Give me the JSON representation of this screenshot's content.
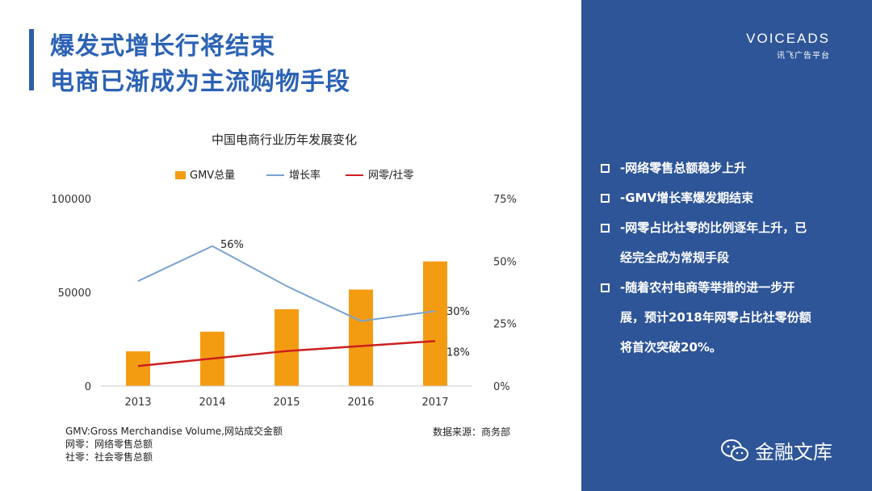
{
  "header": {
    "title_line1": "爆发式增长行将结束",
    "title_line2": "电商已渐成为主流购物手段"
  },
  "brand": {
    "logo": "VOICEADS",
    "logo_sub": "讯飞广告平台"
  },
  "bullets": [
    "-网络零售总额稳步上升",
    "-GMV增长率爆发期结束",
    "-网零占比社零的比例逐年上升，已",
    "经完全成为常规手段",
    "-随着农村电商等举措的进一步开",
    "展，预计2018年网零占比社零份额",
    "将首次突破20%。"
  ],
  "footnotes": {
    "gmv": "GMV:Gross Merchandise Volume,网站成交金额",
    "wangling": "网零：网络零售总额",
    "sheling": "社零：社会零售总额",
    "source": "数据来源：商务部"
  },
  "watermark": {
    "text": "金融文库",
    "icon": "wechat-icon"
  },
  "colors": {
    "bar": "#f39c12",
    "growth_line": "#7ba3cf",
    "ratio_line": "#cc1f1f",
    "panel": "#2e5597",
    "title": "#2b62b4"
  },
  "chart_data": {
    "type": "bar",
    "title": "中国电商行业历年发展变化",
    "categories": [
      "2013",
      "2014",
      "2015",
      "2016",
      "2017"
    ],
    "series": [
      {
        "name": "GMV总量",
        "type": "bar",
        "axis": "left",
        "values": [
          18500,
          29000,
          41000,
          51500,
          66500
        ]
      },
      {
        "name": "增长率",
        "type": "line",
        "axis": "right",
        "values": [
          42,
          56,
          40,
          26,
          30
        ],
        "labels": [
          "",
          "56%",
          "",
          "",
          "30%"
        ]
      },
      {
        "name": "网零/社零",
        "type": "line",
        "axis": "right",
        "values": [
          8,
          11,
          14,
          16,
          18
        ],
        "labels": [
          "",
          "",
          "",
          "",
          "18%"
        ]
      }
    ],
    "left_axis": {
      "ylim": [
        0,
        100000
      ],
      "ticks": [
        "0",
        "50000",
        "100000"
      ]
    },
    "right_axis": {
      "ylim": [
        0,
        75
      ],
      "ticks": [
        "0%",
        "25%",
        "50%",
        "75%"
      ]
    },
    "legend": "top",
    "grid": false
  }
}
